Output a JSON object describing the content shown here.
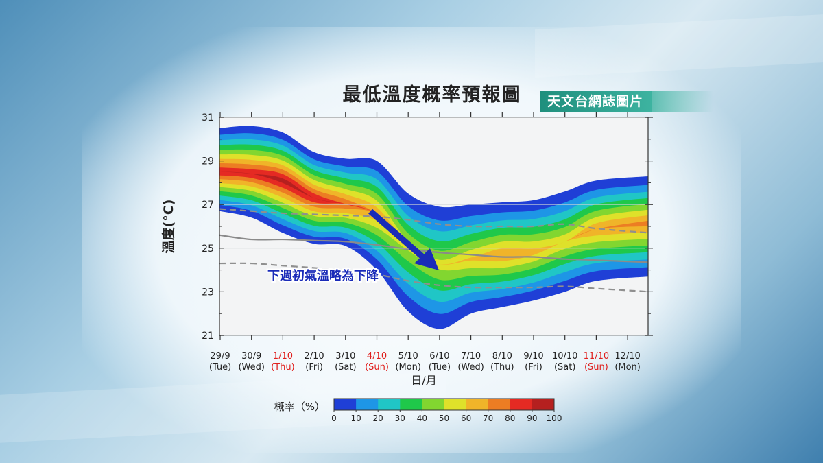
{
  "title": "最低溫度概率預報圖",
  "source_badge": "天文台網誌圖片",
  "annotation": "下週初氣溫略為下降",
  "colors": {
    "scale": [
      "#1f3fd6",
      "#1e96e6",
      "#20c6c6",
      "#1fc84a",
      "#82d630",
      "#dfe12a",
      "#f0b429",
      "#ec7d23",
      "#e52a23",
      "#b5201f"
    ],
    "arrow": "#1a2bb8",
    "annotation_text": "#1a2bb8",
    "weekend_label": "#e0201e"
  },
  "chart_data": {
    "type": "area",
    "title": "最低溫度概率預報圖",
    "xlabel": "日/月",
    "ylabel": "溫度(°C)",
    "ylim": [
      21,
      31
    ],
    "yticks": [
      21,
      23,
      25,
      27,
      29,
      31
    ],
    "grid": true,
    "x_dates": [
      "29/9",
      "30/9",
      "1/10",
      "2/10",
      "3/10",
      "4/10",
      "5/10",
      "6/10",
      "7/10",
      "8/10",
      "9/10",
      "10/10",
      "11/10",
      "12/10"
    ],
    "x_days": [
      "(Tue)",
      "(Wed)",
      "(Thu)",
      "(Fri)",
      "(Sat)",
      "(Sun)",
      "(Mon)",
      "(Tue)",
      "(Wed)",
      "(Thu)",
      "(Fri)",
      "(Sat)",
      "(Sun)",
      "(Mon)"
    ],
    "x_highlight": [
      false,
      false,
      true,
      false,
      false,
      true,
      false,
      false,
      false,
      false,
      false,
      false,
      true,
      false
    ],
    "band_center": [
      28.6,
      28.5,
      28.0,
      27.3,
      27.1,
      26.5,
      24.8,
      24.1,
      24.5,
      24.7,
      24.9,
      25.3,
      25.8,
      26.0
    ],
    "band_halfwidth": [
      1.9,
      2.1,
      2.3,
      2.1,
      2.0,
      2.5,
      2.7,
      2.8,
      2.5,
      2.4,
      2.3,
      2.3,
      2.3,
      2.3
    ],
    "peak_center": [
      28.5,
      28.4,
      28.1,
      27.3,
      27.0,
      26.6,
      25.4,
      24.4,
      24.5,
      24.7,
      24.8,
      25.3,
      25.9,
      26.2
    ],
    "peak_strength": [
      90,
      90,
      95,
      90,
      80,
      70,
      55,
      55,
      62,
      70,
      65,
      60,
      70,
      75
    ],
    "series": [
      {
        "values": [
          26.8,
          26.7,
          26.6,
          26.55,
          26.5,
          26.45,
          26.3,
          26.1,
          26.0,
          26.0,
          26.0,
          26.1,
          25.9,
          25.7
        ],
        "style": "dashed"
      },
      {
        "values": [
          25.6,
          25.4,
          25.4,
          25.35,
          25.3,
          25.15,
          24.95,
          24.8,
          24.7,
          24.6,
          24.6,
          24.5,
          24.45,
          24.35
        ],
        "style": "solid"
      },
      {
        "values": [
          24.3,
          24.3,
          24.2,
          24.1,
          24.0,
          23.8,
          23.5,
          23.3,
          23.2,
          23.2,
          23.2,
          23.25,
          23.15,
          23.0
        ],
        "style": "dashed"
      }
    ],
    "colorbar": {
      "label": "概率（%）",
      "ticks": [
        "0",
        "10",
        "20",
        "30",
        "40",
        "50",
        "60",
        "70",
        "80",
        "90",
        "100"
      ]
    }
  }
}
